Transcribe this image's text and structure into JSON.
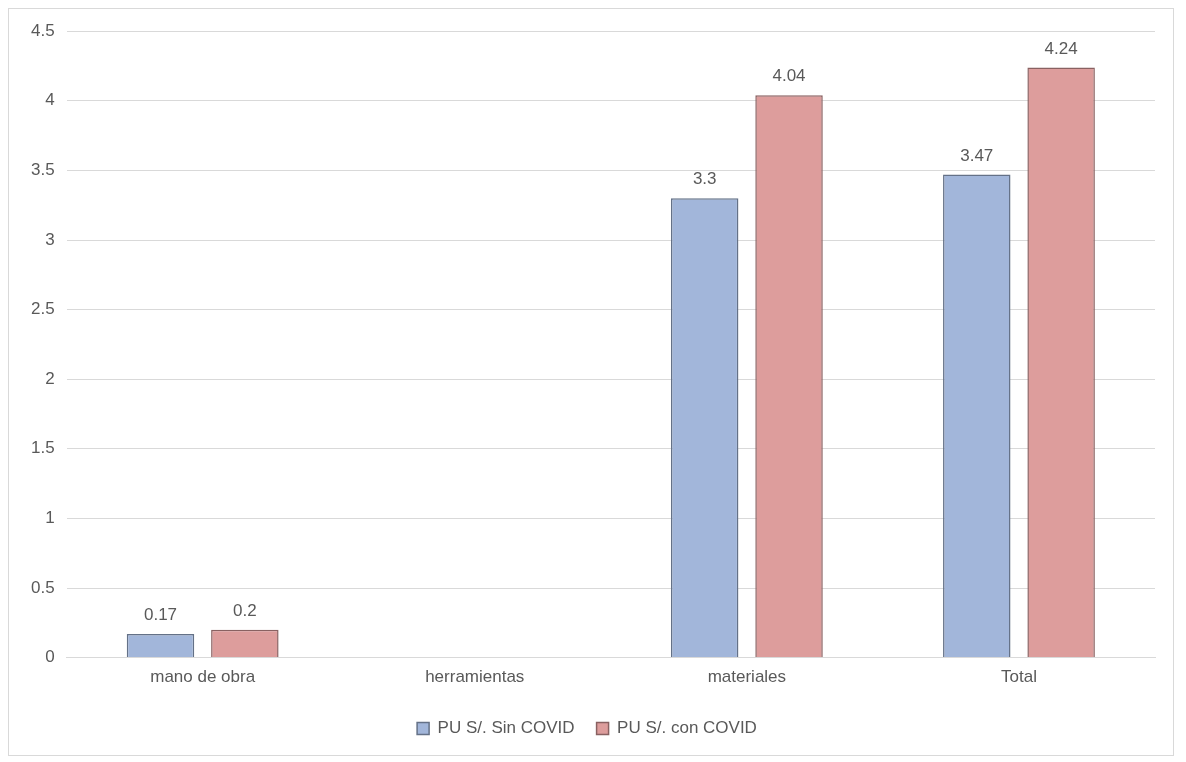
{
  "chart_data": {
    "type": "bar",
    "categories": [
      "mano de obra",
      "herramientas",
      "materiales",
      "Total"
    ],
    "series": [
      {
        "name": "PU S/. Sin COVID",
        "color": "#a2b6da",
        "values": [
          0.17,
          null,
          3.3,
          3.47
        ]
      },
      {
        "name": "PU S/. con COVID",
        "color": "#dd9d9c",
        "values": [
          0.2,
          null,
          4.04,
          4.24
        ]
      }
    ],
    "ylim": [
      0,
      4.5
    ],
    "yticks": [
      0,
      0.5,
      1,
      1.5,
      2,
      2.5,
      3,
      3.5,
      4,
      4.5
    ],
    "grid": "y",
    "legend": "bottom",
    "data_labels": true
  }
}
